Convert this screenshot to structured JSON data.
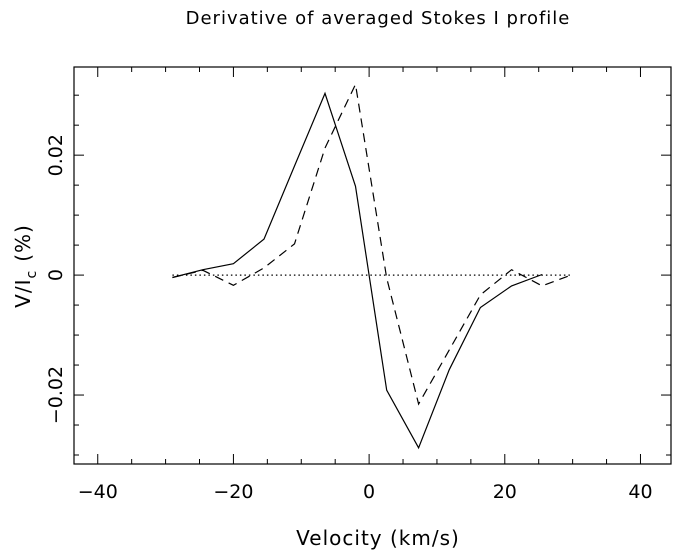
{
  "chart_data": {
    "type": "line",
    "title": "Derivative of averaged Stokes I profile",
    "xlabel": "Velocity (km/s)",
    "ylabel_main": "V/I",
    "ylabel_sub": "c",
    "ylabel_unit": "(%)",
    "xlim": [
      -43.5,
      44.5
    ],
    "ylim": [
      -0.0315,
      0.0347
    ],
    "x_ticks": [
      {
        "value": -40,
        "label": "−40"
      },
      {
        "value": -20,
        "label": "−20"
      },
      {
        "value": 0,
        "label": "0"
      },
      {
        "value": 20,
        "label": "20"
      },
      {
        "value": 40,
        "label": "40"
      }
    ],
    "y_ticks": [
      {
        "value": -0.02,
        "label": "−0.02"
      },
      {
        "value": 0,
        "label": "0"
      },
      {
        "value": 0.02,
        "label": "0.02"
      }
    ],
    "x_minor_step": 5,
    "y_minor_step": 0.005,
    "series": [
      {
        "style": "solid",
        "x": [
          -29,
          -24.5,
          -20,
          -15.5,
          -11,
          -6.5,
          -2,
          2.6,
          7.3,
          11.8,
          16.4,
          21,
          25.5
        ],
        "y": [
          -0.0004,
          0.0009,
          0.0019,
          0.006,
          0.0182,
          0.0303,
          0.0148,
          -0.0192,
          -0.0288,
          -0.0158,
          -0.0054,
          -0.0018,
          0.0001
        ]
      },
      {
        "style": "dashed",
        "x": [
          -29,
          -24.5,
          -20,
          -15.5,
          -11,
          -6.5,
          -2,
          2.6,
          7.3,
          11.8,
          16.4,
          21,
          25.5,
          30
        ],
        "y": [
          -0.0004,
          0.0008,
          -0.0017,
          0.0012,
          0.0052,
          0.0212,
          0.0318,
          -0.0005,
          -0.0215,
          -0.0125,
          -0.0033,
          0.0009,
          -0.0018,
          0.0001
        ]
      },
      {
        "style": "dotted",
        "x": [
          -29,
          30
        ],
        "y": [
          0,
          0
        ]
      }
    ]
  }
}
